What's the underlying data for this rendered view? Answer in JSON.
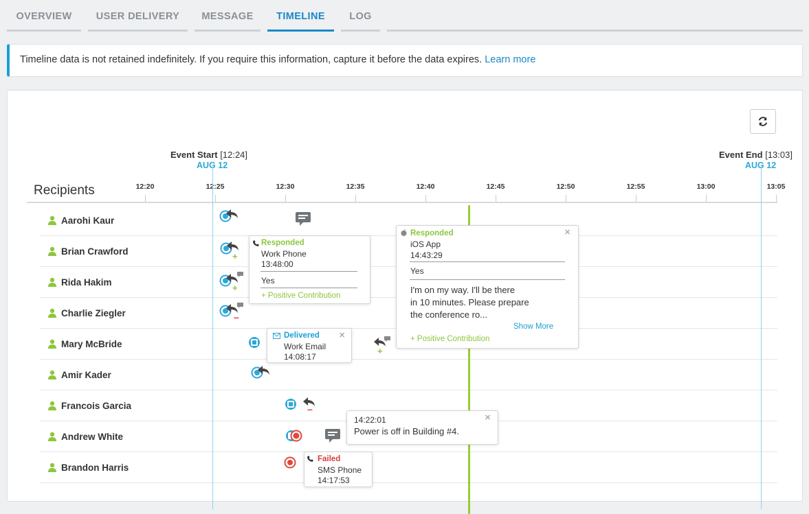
{
  "tabs": [
    "OVERVIEW",
    "USER DELIVERY",
    "MESSAGE",
    "TIMELINE",
    "LOG"
  ],
  "banner": {
    "text": "Timeline data is not retained indefinitely. If you require this information, capture it before the data expires.",
    "link": "Learn more"
  },
  "timeline": {
    "event_start_label": "Event Start",
    "event_start_time": "[12:24]",
    "event_start_date": "AUG 12",
    "event_end_label": "Event End",
    "event_end_time": "[13:03]",
    "event_end_date": "AUG 12",
    "recipients_header": "Recipients",
    "ticks": [
      "12:20",
      "12:25",
      "12:30",
      "12:35",
      "12:40",
      "12:45",
      "12:50",
      "12:55",
      "13:00",
      "13:05"
    ]
  },
  "recipients": [
    "Aarohi Kaur",
    "Brian Crawford",
    "Rida Hakim",
    "Charlie Ziegler",
    "Mary McBride",
    "Amir Kader",
    "Francois Garcia",
    "Andrew White",
    "Brandon Harris"
  ],
  "popups": {
    "brian": {
      "status": "Responded",
      "device": "Work Phone",
      "time": "13:48:00",
      "response": "Yes",
      "contribution": "+ Positive Contribution"
    },
    "ios": {
      "status": "Responded",
      "device": "iOS App",
      "time": "14:43:29",
      "response": "Yes",
      "message_line1": "I'm on my way. I'll be there",
      "message_line2": "in 10 minutes. Please prepare",
      "message_line3": "the conference ro...",
      "show_more": "Show More",
      "contribution": "+ Positive Contribution"
    },
    "mary": {
      "status": "Delivered",
      "device": "Work Email",
      "time": "14:08:17"
    },
    "andrew": {
      "time": "14:22:01",
      "message": "Power is off in Building #4."
    },
    "brandon": {
      "status": "Failed",
      "device": "SMS Phone",
      "time": "14:17:53"
    }
  },
  "colors": {
    "accent": "#1a87c9",
    "timeline_line": "#8fd3ee",
    "now_line": "#9acd32",
    "positive": "#8dc63f",
    "failed": "#d43f3a"
  }
}
